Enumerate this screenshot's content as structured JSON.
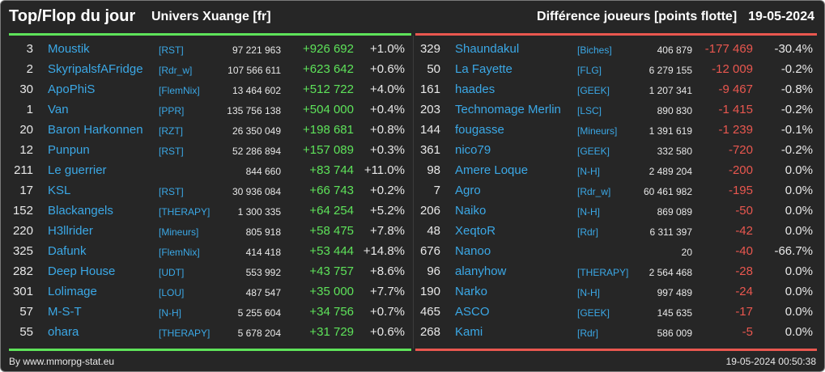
{
  "header": {
    "title": "Top/Flop du jour",
    "subtitle": "Univers Xuange [fr]",
    "right_title": "Différence joueurs [points flotte]",
    "date": "19-05-2024"
  },
  "colors": {
    "background": "#262626",
    "positive": "#5ee35a",
    "negative": "#e9574f",
    "link": "#3ba8e6"
  },
  "top": [
    {
      "rank": "3",
      "name": "Moustik",
      "ally": "[RST]",
      "points": "97 221 963",
      "diff": "+926 692",
      "pct": "+1.0%"
    },
    {
      "rank": "2",
      "name": "SkyripalsfAFridge",
      "ally": "[Rdr_w]",
      "points": "107 566 611",
      "diff": "+623 642",
      "pct": "+0.6%"
    },
    {
      "rank": "30",
      "name": "ApoPhiS",
      "ally": "[FlemNix]",
      "points": "13 464 602",
      "diff": "+512 722",
      "pct": "+4.0%"
    },
    {
      "rank": "1",
      "name": "Van",
      "ally": "[PPR]",
      "points": "135 756 138",
      "diff": "+504 000",
      "pct": "+0.4%"
    },
    {
      "rank": "20",
      "name": "Baron Harkonnen",
      "ally": "[RZT]",
      "points": "26 350 049",
      "diff": "+198 681",
      "pct": "+0.8%"
    },
    {
      "rank": "12",
      "name": "Punpun",
      "ally": "[RST]",
      "points": "52 286 894",
      "diff": "+157 089",
      "pct": "+0.3%"
    },
    {
      "rank": "211",
      "name": "Le guerrier",
      "ally": "",
      "points": "844 660",
      "diff": "+83 744",
      "pct": "+11.0%"
    },
    {
      "rank": "17",
      "name": "KSL",
      "ally": "[RST]",
      "points": "30 936 084",
      "diff": "+66 743",
      "pct": "+0.2%"
    },
    {
      "rank": "152",
      "name": "Blackangels",
      "ally": "[THERAPY]",
      "points": "1 300 335",
      "diff": "+64 254",
      "pct": "+5.2%"
    },
    {
      "rank": "220",
      "name": "H3llrider",
      "ally": "[Mineurs]",
      "points": "805 918",
      "diff": "+58 475",
      "pct": "+7.8%"
    },
    {
      "rank": "325",
      "name": "Dafunk",
      "ally": "[FlemNix]",
      "points": "414 418",
      "diff": "+53 444",
      "pct": "+14.8%"
    },
    {
      "rank": "282",
      "name": "Deep House",
      "ally": "[UDT]",
      "points": "553 992",
      "diff": "+43 757",
      "pct": "+8.6%"
    },
    {
      "rank": "301",
      "name": "Lolimage",
      "ally": "[LOU]",
      "points": "487 547",
      "diff": "+35 000",
      "pct": "+7.7%"
    },
    {
      "rank": "57",
      "name": "M-S-T",
      "ally": "[N-H]",
      "points": "5 255 604",
      "diff": "+34 756",
      "pct": "+0.7%"
    },
    {
      "rank": "55",
      "name": "ohara",
      "ally": "[THERAPY]",
      "points": "5 678 204",
      "diff": "+31 729",
      "pct": "+0.6%"
    }
  ],
  "flop": [
    {
      "rank": "329",
      "name": "Shaundakul",
      "ally": "[Biches]",
      "points": "406 879",
      "diff": "-177 469",
      "pct": "-30.4%"
    },
    {
      "rank": "50",
      "name": "La Fayette",
      "ally": "[FLG]",
      "points": "6 279 155",
      "diff": "-12 009",
      "pct": "-0.2%"
    },
    {
      "rank": "161",
      "name": "haades",
      "ally": "[GEEK]",
      "points": "1 207 341",
      "diff": "-9 467",
      "pct": "-0.8%"
    },
    {
      "rank": "203",
      "name": "Technomage Merlin",
      "ally": "[LSC]",
      "points": "890 830",
      "diff": "-1 415",
      "pct": "-0.2%"
    },
    {
      "rank": "144",
      "name": "fougasse",
      "ally": "[Mineurs]",
      "points": "1 391 619",
      "diff": "-1 239",
      "pct": "-0.1%"
    },
    {
      "rank": "361",
      "name": "nico79",
      "ally": "[GEEK]",
      "points": "332 580",
      "diff": "-720",
      "pct": "-0.2%"
    },
    {
      "rank": "98",
      "name": "Amere Loque",
      "ally": "[N-H]",
      "points": "2 489 204",
      "diff": "-200",
      "pct": "0.0%"
    },
    {
      "rank": "7",
      "name": "Agro",
      "ally": "[Rdr_w]",
      "points": "60 461 982",
      "diff": "-195",
      "pct": "0.0%"
    },
    {
      "rank": "206",
      "name": "Naiko",
      "ally": "[N-H]",
      "points": "869 089",
      "diff": "-50",
      "pct": "0.0%"
    },
    {
      "rank": "48",
      "name": "XeqtoR",
      "ally": "[Rdr]",
      "points": "6 311 397",
      "diff": "-42",
      "pct": "0.0%"
    },
    {
      "rank": "676",
      "name": "Nanoo",
      "ally": "",
      "points": "20",
      "diff": "-40",
      "pct": "-66.7%"
    },
    {
      "rank": "96",
      "name": "alanyhow",
      "ally": "[THERAPY]",
      "points": "2 564 468",
      "diff": "-28",
      "pct": "0.0%"
    },
    {
      "rank": "190",
      "name": "Narko",
      "ally": "[N-H]",
      "points": "997 489",
      "diff": "-24",
      "pct": "0.0%"
    },
    {
      "rank": "465",
      "name": "ASCO",
      "ally": "[GEEK]",
      "points": "145 635",
      "diff": "-17",
      "pct": "0.0%"
    },
    {
      "rank": "268",
      "name": "Kami",
      "ally": "[Rdr]",
      "points": "586 009",
      "diff": "-5",
      "pct": "0.0%"
    }
  ],
  "footer": {
    "credit": "By www.mmorpg-stat.eu",
    "timestamp": "19-05-2024 00:50:38"
  }
}
